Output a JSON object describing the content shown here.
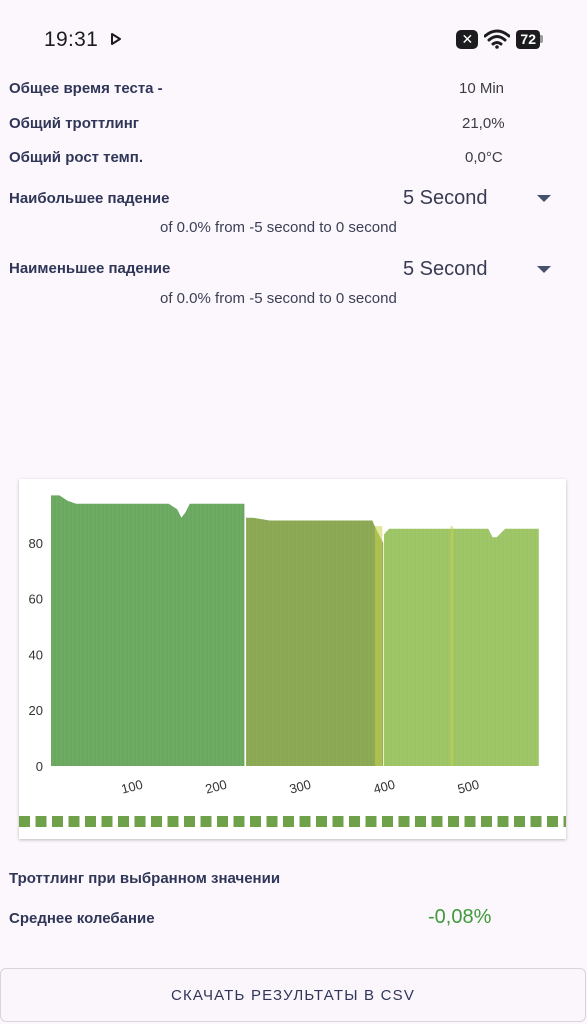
{
  "status_bar": {
    "time": "19:31",
    "battery": "72",
    "icons": [
      "play-icon",
      "x-badge-icon",
      "wifi-icon",
      "battery-icon"
    ]
  },
  "summary": {
    "total_time_label": "Общее время теста -",
    "total_time_value": "10 Min",
    "throttling_label": "Общий троттлинг",
    "throttling_value": "21,0%",
    "temp_label": "Общий рост темп.",
    "temp_value": "0,0°C"
  },
  "largest_drop": {
    "label": "Наибольшее падение",
    "dropdown_value": "5 Second",
    "detail": "of 0.0% from -5 second to  0 second"
  },
  "smallest_drop": {
    "label": "Наименьшее падение",
    "dropdown_value": "5 Second",
    "detail": "of 0.0% from -5 second to  0 second"
  },
  "chart_data": {
    "type": "bar",
    "y_ticks": [
      "0",
      "20",
      "40",
      "60",
      "80"
    ],
    "x_ticks": [
      "100",
      "200",
      "300",
      "400",
      "500"
    ],
    "ylim": [
      0,
      100
    ],
    "xlim": [
      0,
      585
    ],
    "grid": false,
    "colors": {
      "segment_1": "#6aa860",
      "segment_2": "#8aa752",
      "segment_3": "#9cc464",
      "accent": "#c9d34a",
      "indicator": "#6fa14a"
    },
    "segments": [
      {
        "x": [
          0,
          10,
          20,
          30,
          60,
          100,
          140,
          150,
          155,
          160,
          165,
          170,
          180,
          200,
          220,
          230
        ],
        "y": [
          97,
          97,
          95,
          94,
          94,
          94,
          94,
          92,
          89,
          91,
          94,
          94,
          94,
          94,
          94,
          94
        ]
      },
      {
        "x": [
          232,
          240,
          260,
          280,
          300,
          330,
          360,
          375,
          382,
          388,
          395
        ],
        "y": [
          89,
          89,
          88,
          88,
          88,
          88,
          88,
          88,
          88,
          84,
          80
        ]
      },
      {
        "x": [
          396,
          402,
          410,
          430,
          460,
          480,
          500,
          520,
          525,
          530,
          540,
          560,
          580
        ],
        "y": [
          83,
          85,
          85,
          85,
          85,
          85,
          85,
          85,
          82,
          82,
          85,
          85,
          85
        ]
      }
    ]
  },
  "footer": {
    "selected_title": "Троттлинг при выбранном значении",
    "avg_label": "Среднее колебание",
    "avg_value": "-0,08%",
    "avg_color": "#3e9b3a"
  },
  "csv_button": "СКАЧАТЬ РЕЗУЛЬТАТЫ В CSV"
}
